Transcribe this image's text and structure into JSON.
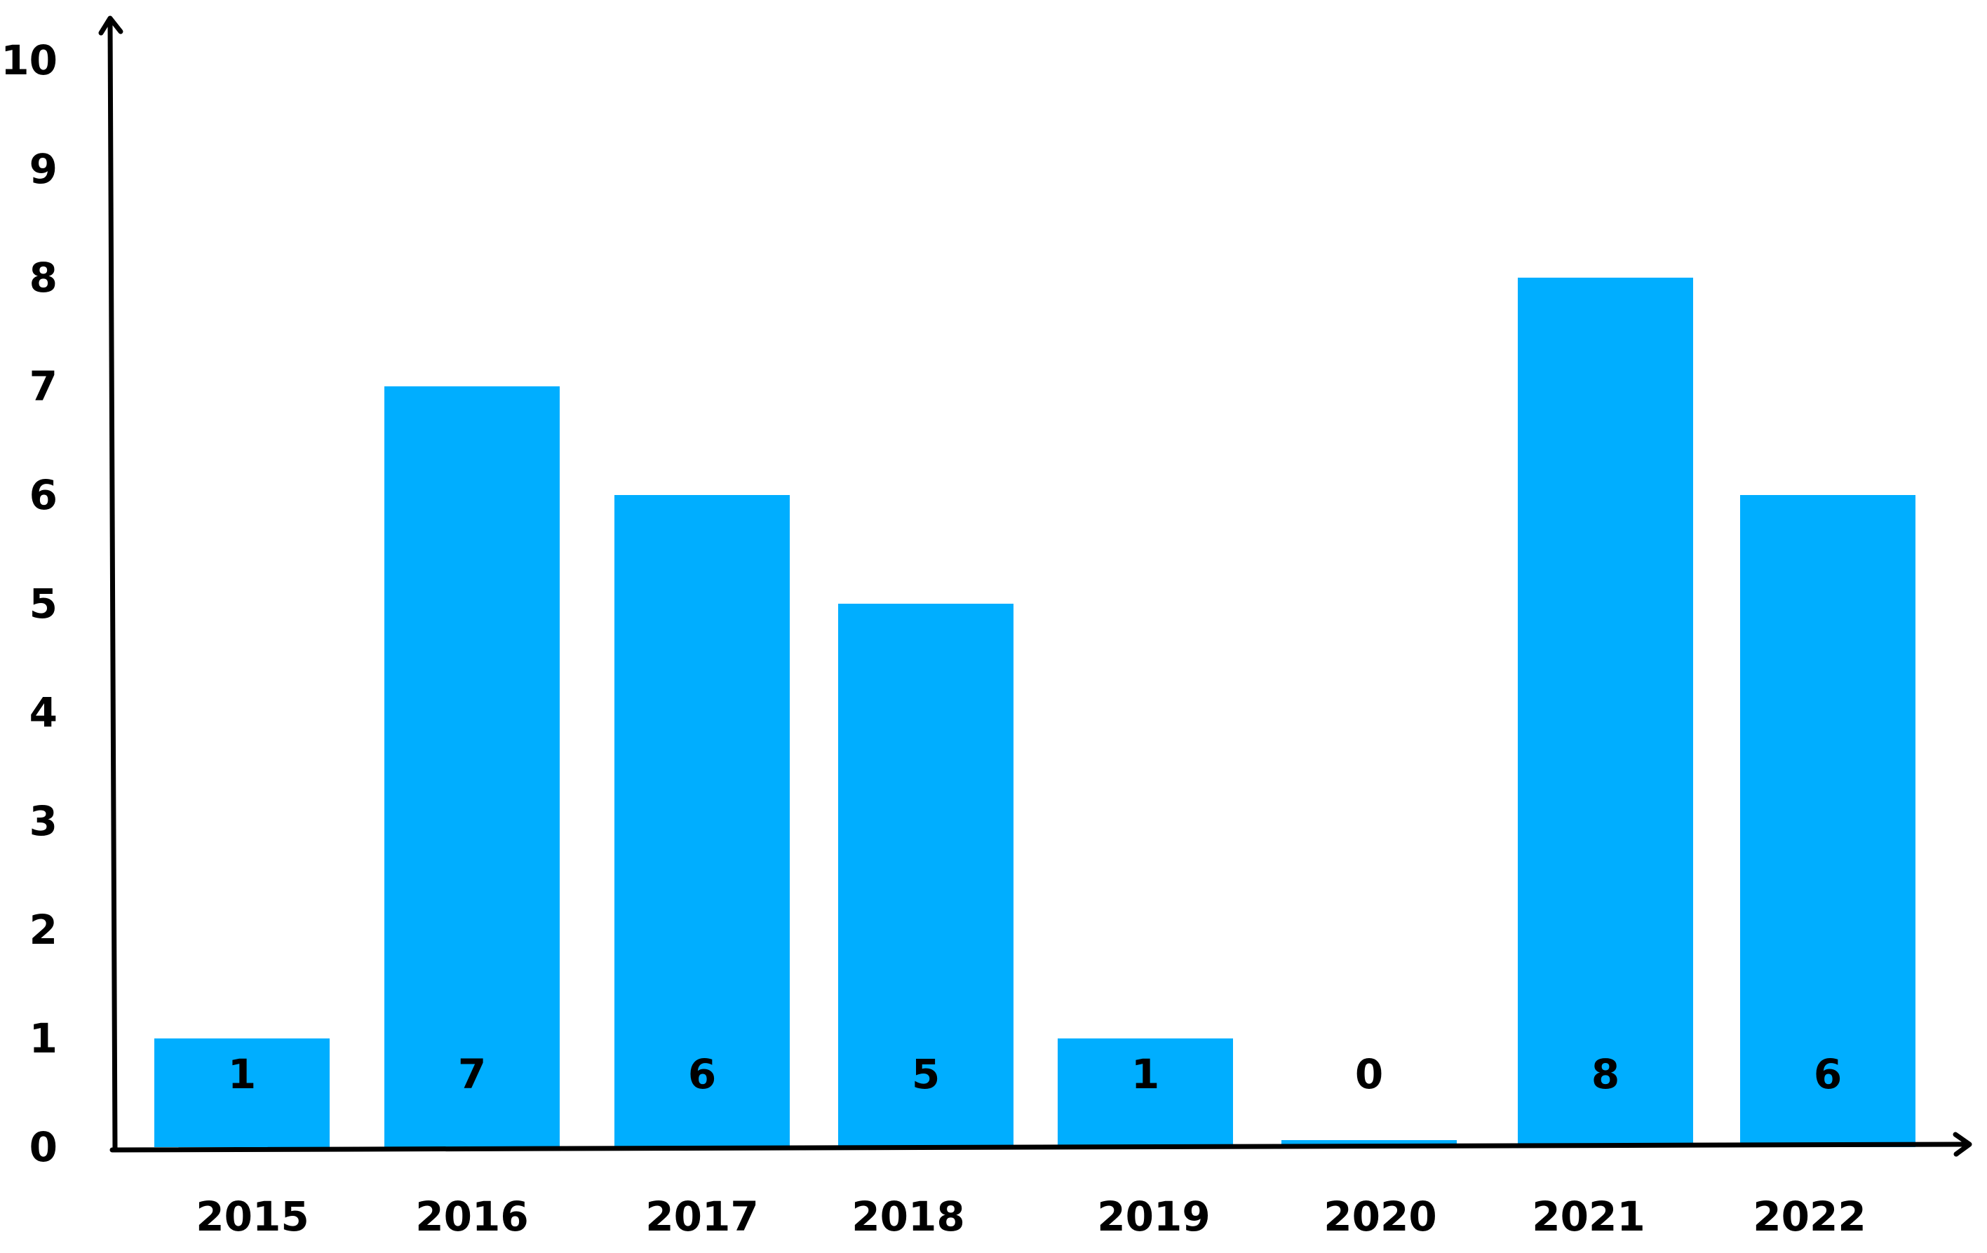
{
  "chart_data": {
    "type": "bar",
    "title": "",
    "xlabel": "",
    "ylabel": "",
    "categories": [
      "2015",
      "2016",
      "2017",
      "2018",
      "2019",
      "2020",
      "2021",
      "2022"
    ],
    "values": [
      1,
      7,
      6,
      5,
      1,
      0,
      8,
      6
    ],
    "data_labels": [
      "1",
      "7",
      "6",
      "5",
      "1",
      "0",
      "8",
      "6"
    ],
    "y_ticks": [
      "0",
      "1",
      "2",
      "3",
      "4",
      "5",
      "6",
      "7",
      "8",
      "9",
      "10"
    ],
    "ylim": [
      0,
      10
    ],
    "grid": false,
    "legend": "none",
    "bar_color": "#00AEFF",
    "axis_color": "#000000"
  }
}
